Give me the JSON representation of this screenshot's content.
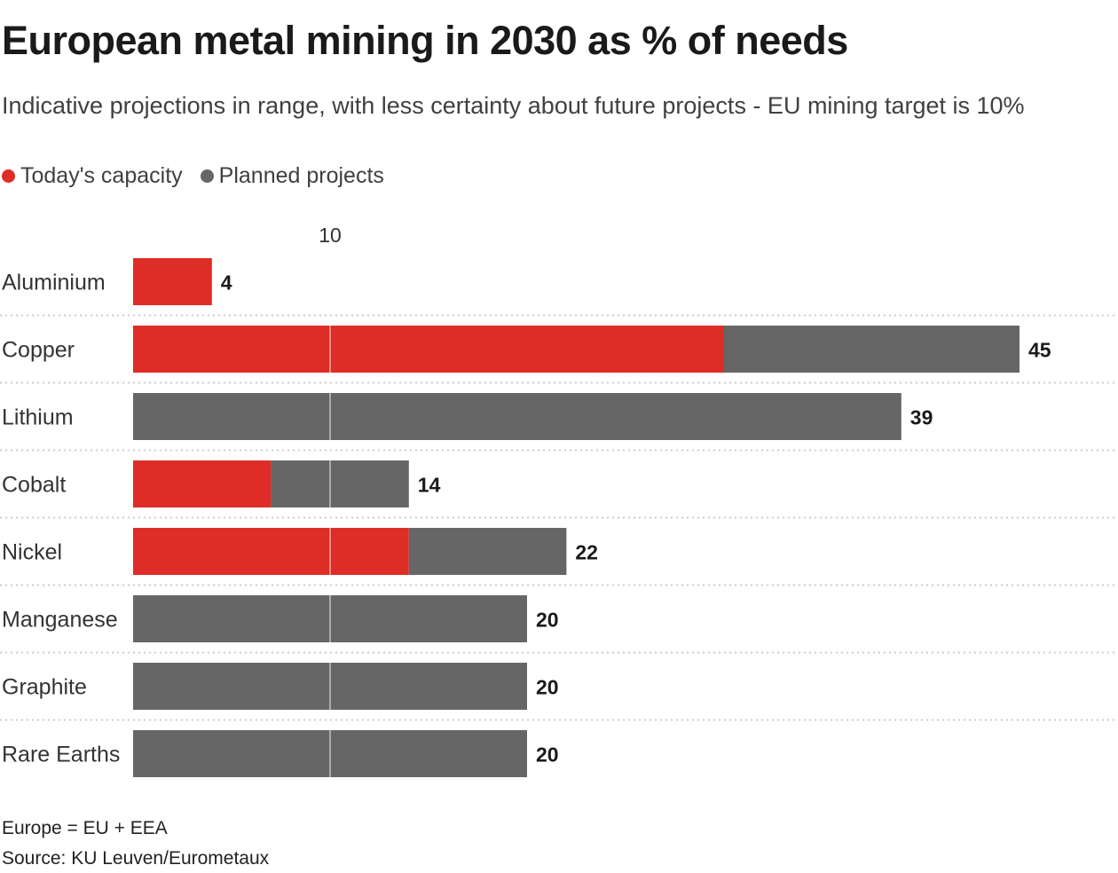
{
  "chart_data": {
    "type": "bar",
    "orientation": "horizontal",
    "stacked": true,
    "title": "European metal mining in 2030 as % of needs",
    "subtitle": "Indicative projections in range, with less certainty about future projects - EU mining target is 10%",
    "categories": [
      "Aluminium",
      "Copper",
      "Lithium",
      "Cobalt",
      "Nickel",
      "Manganese",
      "Graphite",
      "Rare Earths"
    ],
    "series": [
      {
        "name": "Today's capacity",
        "color": "#de2d26",
        "values": [
          4,
          30,
          0,
          7,
          14,
          0,
          0,
          0
        ]
      },
      {
        "name": "Planned projects",
        "color": "#666666",
        "values": [
          0,
          15,
          39,
          7,
          8,
          20,
          20,
          20
        ]
      }
    ],
    "totals": [
      "4",
      "45",
      "39",
      "14",
      "22",
      "20",
      "20",
      "20"
    ],
    "xlim": [
      0,
      50
    ],
    "xticks": [
      {
        "value": 10,
        "label": "10"
      }
    ],
    "grid": "vertical line at 10",
    "legend": "top-left"
  },
  "footer": {
    "note": "Europe = EU + EEA",
    "source": "Source: KU Leuven/Eurometaux"
  }
}
